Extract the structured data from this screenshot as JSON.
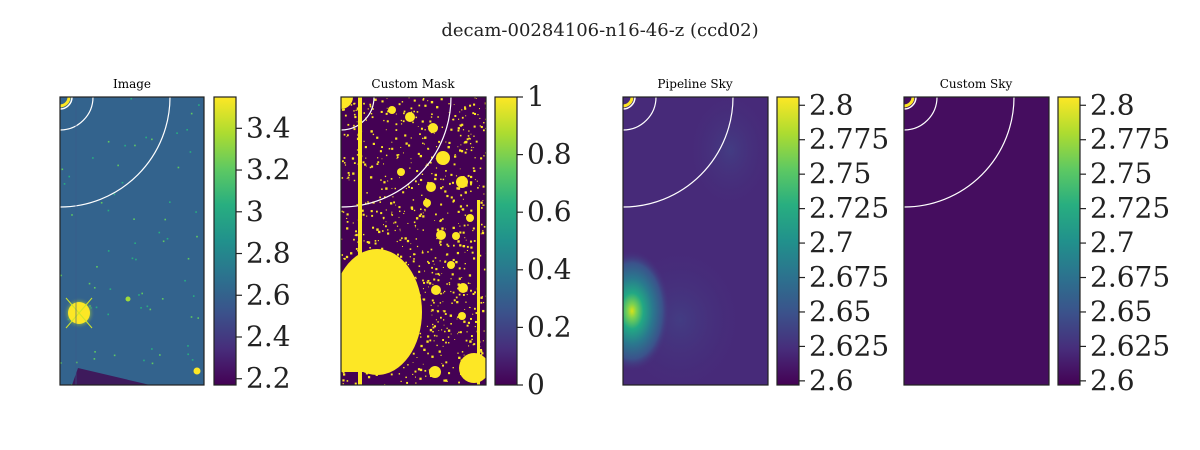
{
  "figure": {
    "title": "decam-00284106-n16-46-z (ccd02)"
  },
  "chart_data": [
    {
      "type": "heatmap",
      "title": "Image",
      "colormap": "viridis",
      "colorbar": {
        "vmin": 2.17,
        "vmax": 3.55,
        "ticks": [
          2.2,
          2.4,
          2.6,
          2.8,
          3.0,
          3.2,
          3.4
        ],
        "tick_labels": [
          "2.2",
          "2.4",
          "2.6",
          "2.8",
          "3",
          "3.2",
          "3.4"
        ]
      },
      "axes_ticks_visible": false,
      "background_level": 2.62
    },
    {
      "type": "heatmap",
      "title": "Custom Mask",
      "colormap": "viridis",
      "colorbar": {
        "vmin": 0,
        "vmax": 1,
        "ticks": [
          0,
          0.2,
          0.4,
          0.6,
          0.8,
          1
        ],
        "tick_labels": [
          "0",
          "0.2",
          "0.4",
          "0.6",
          "0.8",
          "1"
        ]
      },
      "axes_ticks_visible": false,
      "values_present": [
        0,
        1
      ]
    },
    {
      "type": "heatmap",
      "title": "Pipeline Sky",
      "colormap": "viridis",
      "colorbar": {
        "vmin": 2.597,
        "vmax": 2.806,
        "ticks": [
          2.6,
          2.625,
          2.65,
          2.675,
          2.7,
          2.725,
          2.75,
          2.775,
          2.8
        ],
        "tick_labels": [
          "2.6",
          "2.625",
          "2.65",
          "2.675",
          "2.7",
          "2.725",
          "2.75",
          "2.775",
          "2.8"
        ]
      },
      "axes_ticks_visible": false,
      "background_level": 2.612
    },
    {
      "type": "heatmap",
      "title": "Custom Sky",
      "colormap": "viridis",
      "colorbar": {
        "vmin": 2.597,
        "vmax": 2.806,
        "ticks": [
          2.6,
          2.625,
          2.65,
          2.675,
          2.7,
          2.725,
          2.75,
          2.775,
          2.8
        ],
        "tick_labels": [
          "2.6",
          "2.625",
          "2.65",
          "2.675",
          "2.7",
          "2.725",
          "2.75",
          "2.775",
          "2.8"
        ]
      },
      "axes_ticks_visible": false,
      "background_level": 2.607
    }
  ]
}
